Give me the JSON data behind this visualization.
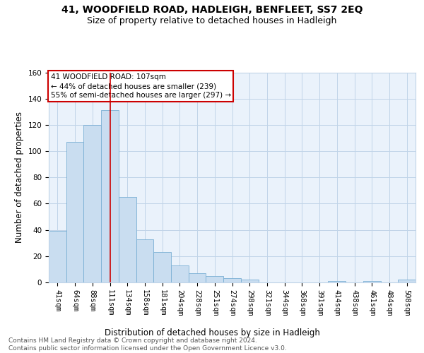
{
  "title": "41, WOODFIELD ROAD, HADLEIGH, BENFLEET, SS7 2EQ",
  "subtitle": "Size of property relative to detached houses in Hadleigh",
  "xlabel": "Distribution of detached houses by size in Hadleigh",
  "ylabel": "Number of detached properties",
  "footer_line1": "Contains HM Land Registry data © Crown copyright and database right 2024.",
  "footer_line2": "Contains public sector information licensed under the Open Government Licence v3.0.",
  "bar_labels": [
    "41sqm",
    "64sqm",
    "88sqm",
    "111sqm",
    "134sqm",
    "158sqm",
    "181sqm",
    "204sqm",
    "228sqm",
    "251sqm",
    "274sqm",
    "298sqm",
    "321sqm",
    "344sqm",
    "368sqm",
    "391sqm",
    "414sqm",
    "438sqm",
    "461sqm",
    "484sqm",
    "508sqm"
  ],
  "bar_values": [
    39,
    107,
    120,
    131,
    65,
    33,
    23,
    13,
    7,
    5,
    3,
    2,
    0,
    0,
    0,
    0,
    1,
    0,
    1,
    0,
    2
  ],
  "bar_color": "#c9ddf0",
  "bar_edge_color": "#7aafd4",
  "grid_color": "#c0d4e8",
  "bg_color": "#eaf2fb",
  "vline_color": "#cc0000",
  "annotation_text": "41 WOODFIELD ROAD: 107sqm\n← 44% of detached houses are smaller (239)\n55% of semi-detached houses are larger (297) →",
  "annotation_box_color": "#cc0000",
  "ylim": [
    0,
    160
  ],
  "yticks": [
    0,
    20,
    40,
    60,
    80,
    100,
    120,
    140,
    160
  ],
  "title_fontsize": 10,
  "subtitle_fontsize": 9,
  "xlabel_fontsize": 8.5,
  "ylabel_fontsize": 8.5,
  "tick_fontsize": 7.5,
  "annotation_fontsize": 7.5,
  "footer_fontsize": 6.5
}
